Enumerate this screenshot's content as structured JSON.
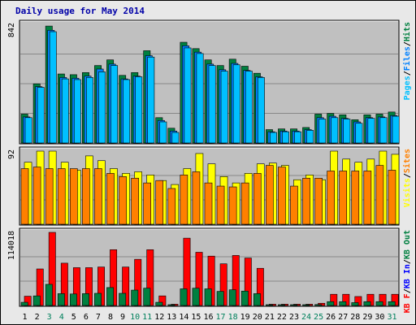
{
  "title": "Daily usage for May 2014",
  "colors": {
    "plot_bg": "#c0c0c0",
    "gridline": "#888888",
    "hits": "#008040",
    "files": "#0080ff",
    "pages": "#00c0ff",
    "visits": "#ff8000",
    "sites": "#ffff00",
    "kbin": "#ff0000",
    "kbout": "#008040",
    "day_normal": "#000000",
    "day_weekend": "#00805c"
  },
  "chart_data": [
    {
      "type": "bar",
      "panel": "top",
      "y_label_text": "842",
      "ylim": [
        0,
        842
      ],
      "legend": [
        {
          "text": "Pages",
          "color": "#00c0ff"
        },
        {
          "text": "/",
          "color": "#000000"
        },
        {
          "text": "Files",
          "color": "#0080ff"
        },
        {
          "text": "/",
          "color": "#000000"
        },
        {
          "text": "Hits",
          "color": "#008040"
        }
      ],
      "categories": [
        "1",
        "2",
        "3",
        "4",
        "5",
        "6",
        "7",
        "8",
        "9",
        "10",
        "11",
        "12",
        "13",
        "14",
        "15",
        "16",
        "17",
        "18",
        "19",
        "20",
        "21",
        "22",
        "23",
        "24",
        "25",
        "26",
        "27",
        "28",
        "29",
        "30",
        "31"
      ],
      "series": [
        {
          "name": "Hits",
          "values": [
            205,
            420,
            830,
            490,
            485,
            500,
            550,
            590,
            480,
            500,
            655,
            180,
            105,
            715,
            670,
            590,
            550,
            595,
            545,
            495,
            95,
            100,
            100,
            110,
            205,
            210,
            200,
            165,
            200,
            205,
            220
          ]
        },
        {
          "name": "Files",
          "values": [
            185,
            400,
            800,
            465,
            460,
            475,
            525,
            560,
            455,
            475,
            620,
            160,
            85,
            690,
            645,
            560,
            520,
            565,
            515,
            470,
            80,
            85,
            85,
            95,
            180,
            190,
            175,
            150,
            180,
            185,
            195
          ]
        },
        {
          "name": "Pages",
          "values": [
            180,
            395,
            790,
            455,
            450,
            465,
            505,
            550,
            450,
            470,
            610,
            150,
            75,
            675,
            635,
            550,
            510,
            555,
            510,
            465,
            75,
            80,
            80,
            90,
            170,
            180,
            170,
            140,
            175,
            180,
            190
          ]
        }
      ]
    },
    {
      "type": "bar",
      "panel": "middle",
      "y_label_text": "92",
      "ylim": [
        0,
        92
      ],
      "legend": [
        {
          "text": "Visits",
          "color": "#ffff00"
        },
        {
          "text": "/",
          "color": "#000000"
        },
        {
          "text": "Sites",
          "color": "#ff8000"
        }
      ],
      "categories": [
        "1",
        "2",
        "3",
        "4",
        "5",
        "6",
        "7",
        "8",
        "9",
        "10",
        "11",
        "12",
        "13",
        "14",
        "15",
        "16",
        "17",
        "18",
        "19",
        "20",
        "21",
        "22",
        "23",
        "24",
        "25",
        "26",
        "27",
        "28",
        "29",
        "30",
        "31"
      ],
      "series": [
        {
          "name": "Visits",
          "values": [
            78,
            92,
            92,
            78,
            68,
            86,
            80,
            70,
            64,
            66,
            62,
            55,
            50,
            70,
            89,
            76,
            60,
            52,
            64,
            76,
            77,
            74,
            56,
            62,
            56,
            92,
            82,
            78,
            82,
            92,
            88
          ]
        },
        {
          "name": "Sites",
          "values": [
            70,
            72,
            70,
            70,
            70,
            70,
            70,
            64,
            60,
            58,
            52,
            55,
            45,
            62,
            66,
            52,
            48,
            47,
            52,
            64,
            74,
            72,
            48,
            58,
            58,
            67,
            67,
            67,
            67,
            74,
            68
          ]
        }
      ]
    },
    {
      "type": "bar",
      "panel": "bottom",
      "y_label_text": "114018",
      "ylim": [
        0,
        114018
      ],
      "legend": [
        {
          "text": "KB F",
          "color": "#ff0000"
        },
        {
          "text": "/",
          "color": "#000000"
        },
        {
          "text": "KB In",
          "color": "#0000ff"
        },
        {
          "text": "/",
          "color": "#000000"
        },
        {
          "text": "KB Out",
          "color": "#008040"
        }
      ],
      "categories": [
        "1",
        "2",
        "3",
        "4",
        "5",
        "6",
        "7",
        "8",
        "9",
        "10",
        "11",
        "12",
        "13",
        "14",
        "15",
        "16",
        "17",
        "18",
        "19",
        "20",
        "21",
        "22",
        "23",
        "24",
        "25",
        "26",
        "27",
        "28",
        "29",
        "30",
        "31"
      ],
      "series": [
        {
          "name": "KB F",
          "values": [
            14500,
            57000,
            114018,
            66000,
            59000,
            59000,
            60000,
            87000,
            60000,
            72000,
            87000,
            15000,
            2000,
            105000,
            83000,
            77000,
            65000,
            78000,
            74000,
            58000,
            2000,
            2000,
            2000,
            2000,
            3500,
            17500,
            17500,
            14000,
            17500,
            17500,
            17500
          ]
        },
        {
          "name": "KB Out",
          "values": [
            5000,
            15000,
            33000,
            18500,
            18000,
            18500,
            19000,
            28000,
            19000,
            24000,
            27000,
            5000,
            1000,
            26000,
            27000,
            26000,
            22000,
            24500,
            22500,
            18500,
            1000,
            1000,
            1000,
            1000,
            1500,
            6000,
            6000,
            4500,
            6000,
            6000,
            6000
          ]
        }
      ]
    }
  ]
}
